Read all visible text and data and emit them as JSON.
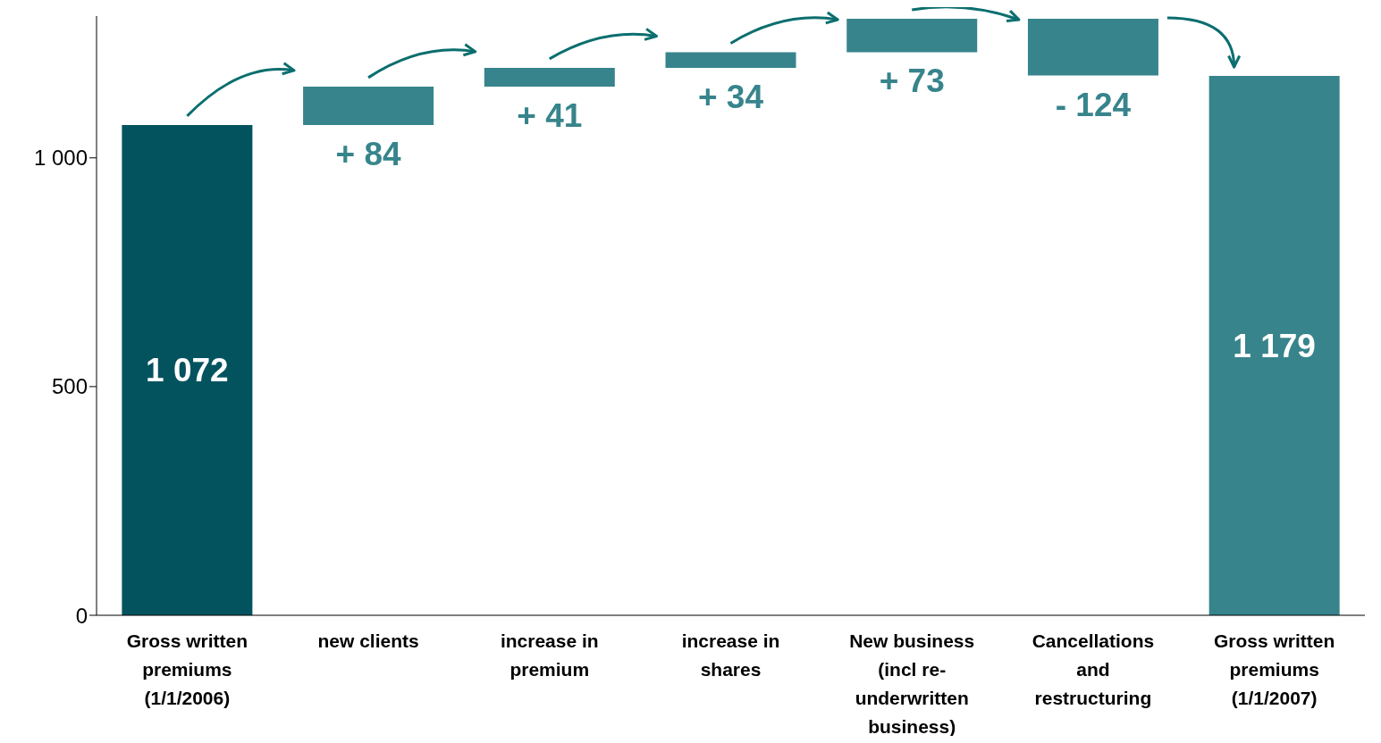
{
  "chart_data": {
    "type": "bar",
    "categories": [
      "Gross written premiums (1/1/2006)",
      "new clients",
      "increase in premium",
      "increase in shares",
      "New business (incl re-underwritten business)",
      "Cancellations and restructuring",
      "Gross written premiums (1/1/2007)"
    ],
    "values": [
      1072,
      84,
      41,
      34,
      73,
      -124,
      1179
    ],
    "base": [
      0,
      1072,
      1156,
      1197,
      1231,
      1304,
      0
    ],
    "colors": [
      "#03535f",
      "#37848c",
      "#37848c",
      "#37848c",
      "#37848c",
      "#37848c",
      "#37848c"
    ],
    "value_labels": [
      "1 072",
      "+ 84",
      "+ 41",
      "+ 34",
      "+ 73",
      "- 124",
      "1 179"
    ],
    "ylim": [
      0,
      1310
    ],
    "yticks": [
      0,
      500,
      {
        "value": 1000,
        "label": "1 000"
      }
    ]
  }
}
